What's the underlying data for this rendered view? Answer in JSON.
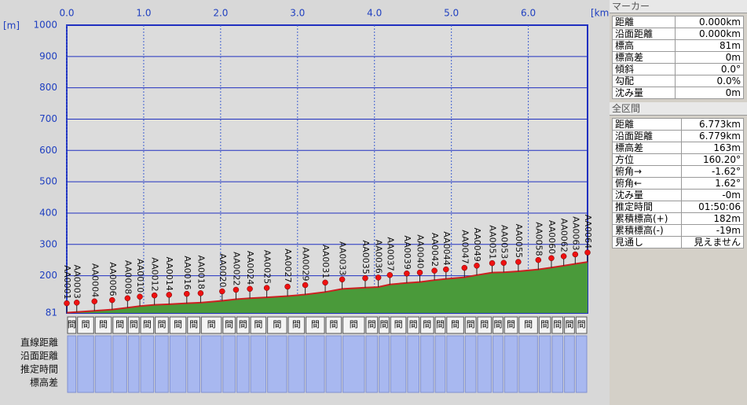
{
  "chart_data": {
    "type": "area",
    "y_label": "[m]",
    "x_label": "[km]",
    "xlim": [
      0,
      6.77
    ],
    "ylim": [
      81,
      1000
    ],
    "xticks": [
      {
        "value": 0,
        "label": "0.0"
      },
      {
        "value": 1,
        "label": "1.0"
      },
      {
        "value": 2,
        "label": "2.0"
      },
      {
        "value": 3,
        "label": "3.0"
      },
      {
        "value": 4,
        "label": "4.0"
      },
      {
        "value": 5,
        "label": "5.0"
      },
      {
        "value": 6,
        "label": "6.0"
      }
    ],
    "yticks": [
      81,
      200,
      300,
      400,
      500,
      600,
      700,
      800,
      900,
      1000
    ],
    "grid": true,
    "color": "#4a9a3a",
    "line_color": "#cc2020",
    "marker_color": "#ee1111",
    "x": [
      0,
      0.13,
      0.36,
      0.59,
      0.79,
      0.95,
      1.14,
      1.33,
      1.56,
      1.74,
      2.02,
      2.2,
      2.38,
      2.6,
      2.87,
      3.1,
      3.36,
      3.58,
      3.88,
      4.05,
      4.2,
      4.42,
      4.59,
      4.78,
      4.93,
      5.17,
      5.33,
      5.53,
      5.68,
      5.87,
      6.13,
      6.3,
      6.46,
      6.61,
      6.77
    ],
    "values": [
      82,
      84,
      88,
      92,
      98,
      103,
      107,
      109,
      112,
      114,
      120,
      125,
      128,
      131,
      135,
      140,
      148,
      158,
      162,
      164,
      172,
      177,
      180,
      186,
      190,
      195,
      202,
      210,
      211,
      214,
      220,
      226,
      232,
      238,
      244
    ],
    "point_labels": [
      "AA0001",
      "AA0003",
      "AA0004",
      "AA0006",
      "AA0008",
      "AA0010",
      "AA0012",
      "AA0014",
      "AA0016",
      "AA0018",
      "AA0020",
      "AA0022",
      "AA0024",
      "AA0025",
      "AA0027",
      "AA0029",
      "AA0031",
      "AA0033",
      "AA0035",
      "AA0036",
      "AA0037",
      "AA0039",
      "AA0040",
      "AA0042",
      "AA0044",
      "AA0047",
      "AA0049",
      "AA0051",
      "AA0053",
      "AA0055",
      "AA0058",
      "AA0060",
      "AA0062",
      "AA0063",
      "AA0064"
    ],
    "segment_header": "間",
    "table_rows": [
      "直線距離",
      "沿面距離",
      "推定時間",
      "標高差"
    ]
  },
  "marker_panel": {
    "title": "マーカー",
    "rows": [
      [
        "距離",
        "0.000km"
      ],
      [
        "沿面距離",
        "0.000km"
      ],
      [
        "標高",
        "81m"
      ],
      [
        "標高差",
        "0m"
      ],
      [
        "傾斜",
        "0.0°"
      ],
      [
        "勾配",
        "0.0%"
      ],
      [
        "沈み量",
        "0m"
      ]
    ]
  },
  "total_panel": {
    "title": "全区間",
    "rows": [
      [
        "距離",
        "6.773km"
      ],
      [
        "沿面距離",
        "6.779km"
      ],
      [
        "標高差",
        "163m"
      ],
      [
        "方位",
        "160.20°"
      ],
      [
        "俯角→",
        "-1.62°"
      ],
      [
        "俯角←",
        "1.62°"
      ],
      [
        "沈み量",
        "-0m"
      ],
      [
        "推定時間",
        "01:50:06"
      ],
      [
        "累積標高(+)",
        "182m"
      ],
      [
        "累積標高(-)",
        "-19m"
      ],
      [
        "見通し",
        "見えません"
      ]
    ]
  }
}
